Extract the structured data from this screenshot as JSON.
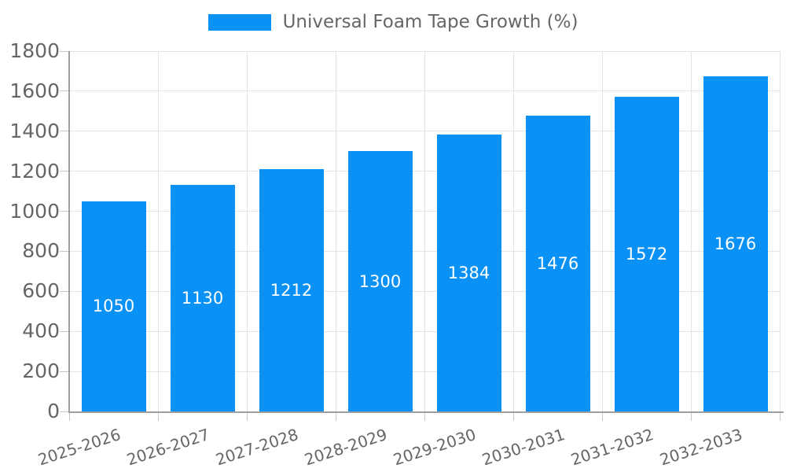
{
  "chart_data": {
    "type": "bar",
    "title": "",
    "series_name": "Universal Foam Tape Growth (%)",
    "categories": [
      "2025-2026",
      "2026-2027",
      "2027-2028",
      "2028-2029",
      "2029-2030",
      "2030-2031",
      "2031-2032",
      "2032-2033"
    ],
    "values": [
      1050,
      1130,
      1212,
      1300,
      1384,
      1476,
      1572,
      1676
    ],
    "value_labels": [
      "1050",
      "1130",
      "1212",
      "1300",
      "1384",
      "1476",
      "1572",
      "1676"
    ],
    "xlabel": "",
    "ylabel": "",
    "ylim": [
      0,
      1800
    ],
    "ytick_step": 200,
    "yticks": [
      0,
      200,
      400,
      600,
      800,
      1000,
      1200,
      1400,
      1600,
      1800
    ],
    "ytick_labels": [
      "0",
      "200",
      "400",
      "600",
      "800",
      "1000",
      "1200",
      "1400",
      "1600",
      "1800"
    ],
    "grid": true,
    "legend_position": "top-center",
    "colors": {
      "bar": "#0991f5",
      "value_label": "#ffffff",
      "axis_label": "#666666",
      "legend_text": "#666666",
      "gridline": "#e4e4e4",
      "tick_mark": "#c6c6c6",
      "axis_line": "#9e9e9e",
      "background": "#ffffff"
    }
  }
}
